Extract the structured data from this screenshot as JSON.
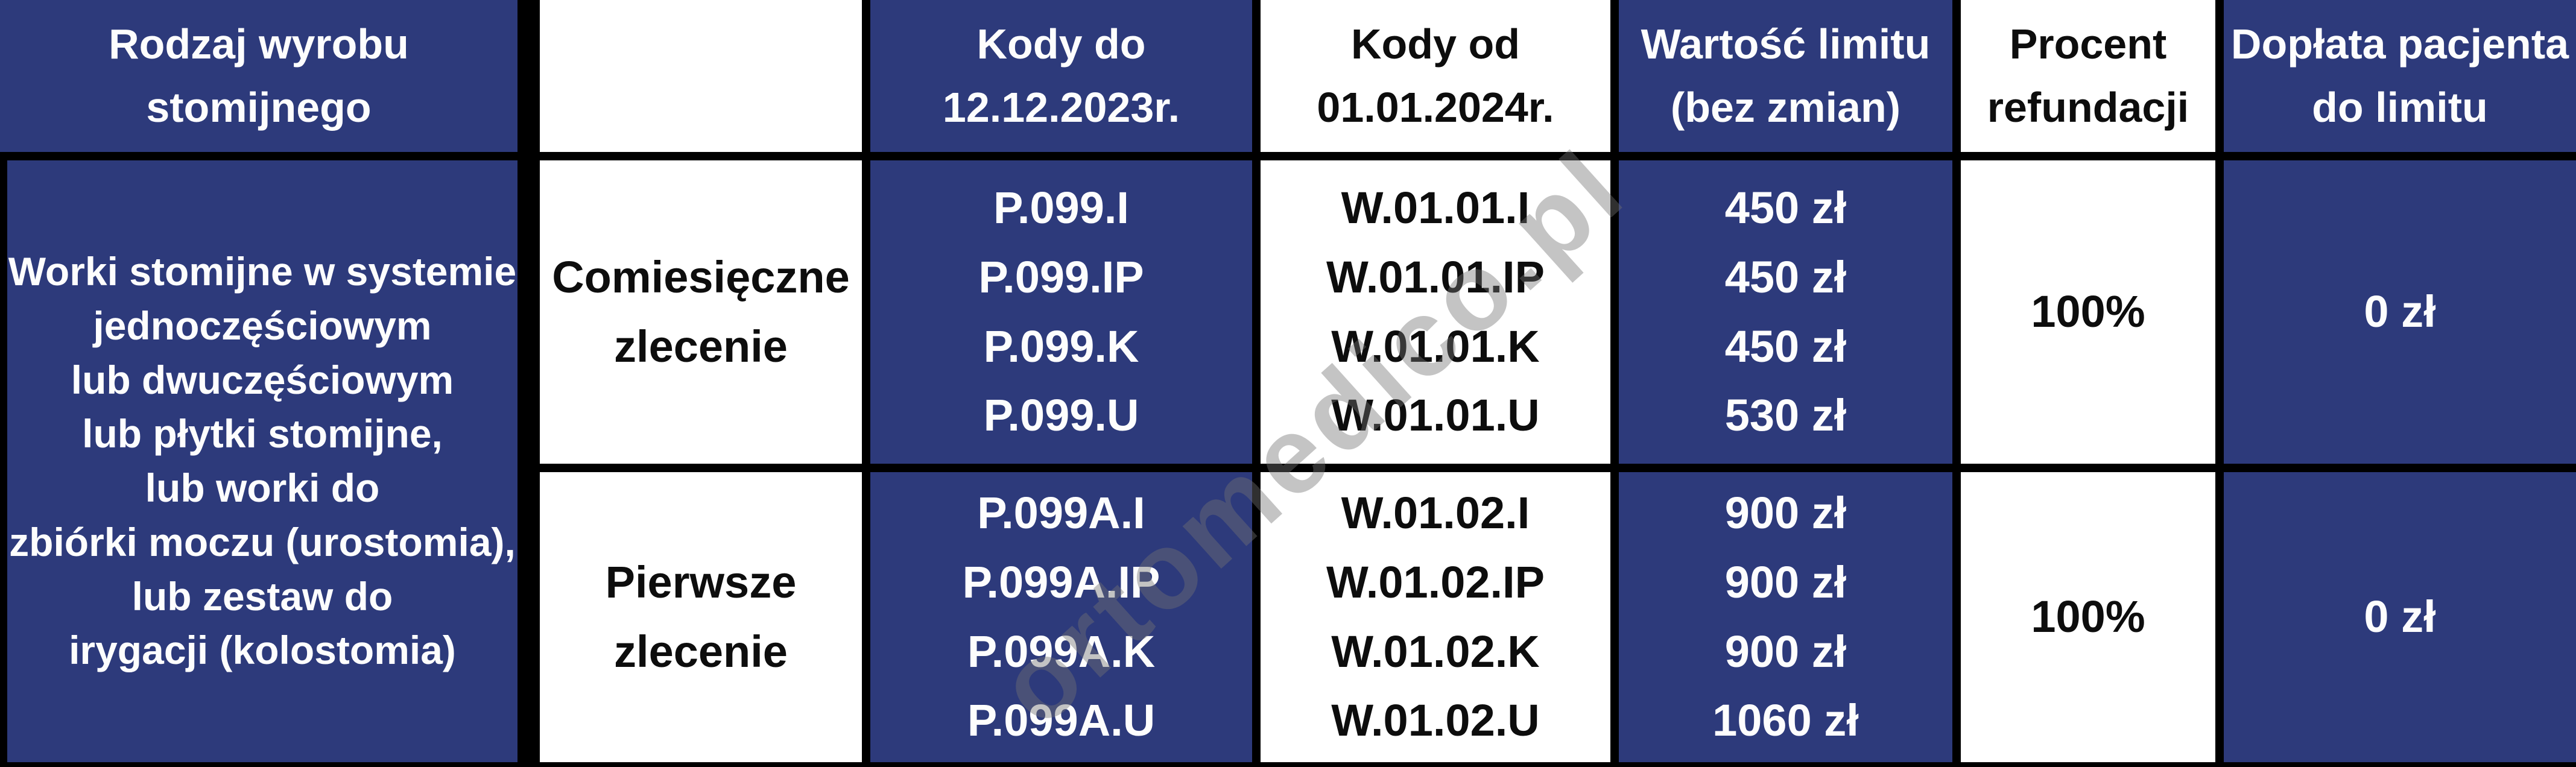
{
  "colors": {
    "navy": "#2d3a7b",
    "border": "#000000",
    "white": "#ffffff",
    "text_on_navy": "#fdfdfd",
    "text_on_white": "#0d0d0d",
    "watermark_gray": "rgba(115,115,115,0.42)"
  },
  "watermark": "ortomedico.pl",
  "table": {
    "header": {
      "product_type": "Rodzaj wyrobu\nstomijnego",
      "empty": "",
      "codes_until": "Kody do\n12.12.2023r.",
      "codes_from": "Kody od\n01.01.2024r.",
      "limit_value": "Wartość limitu\n(bez zmian)",
      "refund_percent": "Procent\nrefundacji",
      "patient_copay": "Dopłata pacjenta\ndo limitu"
    },
    "product_group": "Worki stomijne w systemie\njednoczęściowym\nlub dwuczęściowym\nlub płytki stomijne,\nlub worki do\nzbiórki moczu (urostomia),\nlub zestaw do\nirygacji (kolostomia)",
    "rows": [
      {
        "order_type": "Comiesięczne\nzlecenie",
        "codes_old": "P.099.I\nP.099.IP\nP.099.K\nP.099.U",
        "codes_new": "W.01.01.I\nW.01.01.IP\nW.01.01.K\nW.01.01.U",
        "limit_values": "450 zł\n450 zł\n450 zł\n530 zł",
        "refund_percent": "100%",
        "patient_copay": "0 zł"
      },
      {
        "order_type": "Pierwsze\nzlecenie",
        "codes_old": "P.099A.I\nP.099A.IP\nP.099A.K\nP.099A.U",
        "codes_new": "W.01.02.I\nW.01.02.IP\nW.01.02.K\nW.01.02.U",
        "limit_values": "900 zł\n900 zł\n900 zł\n1060 zł",
        "refund_percent": "100%",
        "patient_copay": "0 zł"
      }
    ]
  }
}
